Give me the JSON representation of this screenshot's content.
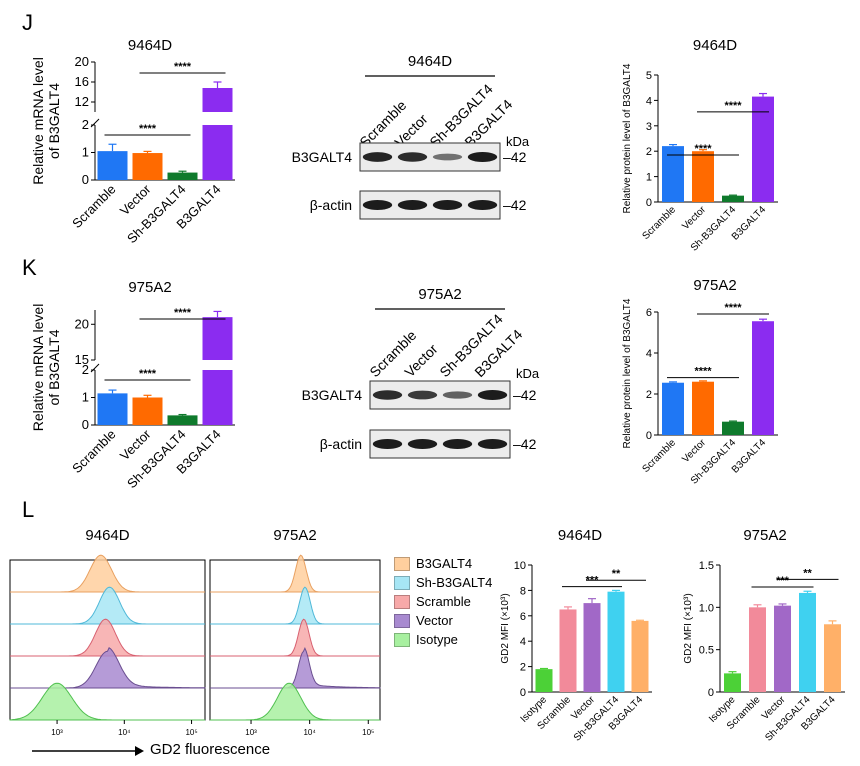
{
  "panels": {
    "J": "J",
    "K": "K",
    "L": "L"
  },
  "colors": {
    "scramble": "#1f77f4",
    "vector": "#ff6a00",
    "sh": "#0f7a2c",
    "b3": "#8b2cf0",
    "l_isotype": "#4cd137",
    "l_scramble": "#f28a9a",
    "l_vector": "#a168c7",
    "l_sh": "#3fd1f0",
    "l_b3": "#ffb068"
  },
  "sig": {
    "four": "****",
    "three": "***",
    "two": "**"
  },
  "chart_data": [
    {
      "id": "J-mrna",
      "type": "bar",
      "title": "9464D",
      "ylabel_line1": "Relative mRNA level",
      "ylabel_line2": "of B3GALT4",
      "categories": [
        "Scramble",
        "Vector",
        "Sh-B3GALT4",
        "B3GALT4"
      ],
      "values": [
        1.05,
        0.98,
        0.27,
        14.8
      ],
      "errors": [
        0.25,
        0.06,
        0.05,
        1.2
      ],
      "broken_axis": true,
      "lower_range": [
        0,
        2
      ],
      "upper_range": [
        10,
        20
      ],
      "yticks_lower": [
        "0",
        "1",
        "2"
      ],
      "yticks_upper": [
        "12",
        "16",
        "20"
      ],
      "comparisons": [
        {
          "from": 0,
          "to": 2,
          "label": "****"
        },
        {
          "from": 1,
          "to": 3,
          "label": "****"
        }
      ]
    },
    {
      "id": "J-wb",
      "type": "western-blot",
      "title": "9464D",
      "lanes": [
        "Scramble",
        "Vector",
        "Sh-B3GALT4",
        "B3GALT4"
      ],
      "unit": "kDa",
      "rows": [
        {
          "label": "B3GALT4",
          "kda": "42"
        },
        {
          "label": "β-actin",
          "kda": "42"
        }
      ],
      "band_intensity": [
        [
          0.95,
          0.9,
          0.45,
          1.0
        ],
        [
          1.0,
          1.0,
          1.0,
          1.0
        ]
      ]
    },
    {
      "id": "J-protein",
      "type": "bar",
      "title": "9464D",
      "ylabel": "Relative protein level of B3GALT4",
      "categories": [
        "Scramble",
        "Vector",
        "Sh-B3GALT4",
        "B3GALT4"
      ],
      "values": [
        2.2,
        2.0,
        0.25,
        4.15
      ],
      "errors": [
        0.06,
        0.06,
        0.02,
        0.12
      ],
      "ylim": [
        0,
        5
      ],
      "yticks": [
        "0",
        "1",
        "2",
        "3",
        "4",
        "5"
      ],
      "comparisons": [
        {
          "from": 0,
          "to": 2,
          "label": "****"
        },
        {
          "from": 1,
          "to": 3,
          "label": "****"
        }
      ]
    },
    {
      "id": "K-mrna",
      "type": "bar",
      "title": "975A2",
      "ylabel_line1": "Relative mRNA level",
      "ylabel_line2": "of B3GALT4",
      "categories": [
        "Scramble",
        "Vector",
        "Sh-B3GALT4",
        "B3GALT4"
      ],
      "values": [
        1.15,
        1.0,
        0.35,
        21.0
      ],
      "errors": [
        0.12,
        0.08,
        0.03,
        0.8
      ],
      "broken_axis": true,
      "lower_range": [
        0,
        2
      ],
      "upper_range": [
        15,
        22
      ],
      "yticks_lower": [
        "0",
        "1",
        "2"
      ],
      "yticks_upper": [
        "15",
        "20"
      ],
      "comparisons": [
        {
          "from": 0,
          "to": 2,
          "label": "****"
        },
        {
          "from": 1,
          "to": 3,
          "label": "****"
        }
      ]
    },
    {
      "id": "K-wb",
      "type": "western-blot",
      "title": "975A2",
      "lanes": [
        "Scramble",
        "Vector",
        "Sh-B3GALT4",
        "B3GALT4"
      ],
      "unit": "kDa",
      "rows": [
        {
          "label": "B3GALT4",
          "kda": "42"
        },
        {
          "label": "β-actin",
          "kda": "42"
        }
      ],
      "band_intensity": [
        [
          0.9,
          0.8,
          0.55,
          1.0
        ],
        [
          1.0,
          1.0,
          1.0,
          1.0
        ]
      ]
    },
    {
      "id": "K-protein",
      "type": "bar",
      "title": "975A2",
      "ylabel": "Relative protein level of B3GALT4",
      "categories": [
        "Scramble",
        "Vector",
        "Sh-B3GALT4",
        "B3GALT4"
      ],
      "values": [
        2.55,
        2.6,
        0.65,
        5.55
      ],
      "errors": [
        0.04,
        0.04,
        0.03,
        0.1
      ],
      "ylim": [
        0,
        6
      ],
      "yticks": [
        "0",
        "2",
        "4",
        "6"
      ],
      "comparisons": [
        {
          "from": 0,
          "to": 2,
          "label": "****"
        },
        {
          "from": 1,
          "to": 3,
          "label": "****"
        }
      ]
    },
    {
      "id": "L-hist-9464D",
      "type": "histogram",
      "title": "9464D",
      "xticks": [
        "10³",
        "10⁴",
        "10⁵"
      ],
      "tracks": [
        {
          "name": "B3GALT4",
          "peak_log": 3.65,
          "width": 0.16
        },
        {
          "name": "Sh-B3GALT4",
          "peak_log": 3.78,
          "width": 0.15
        },
        {
          "name": "Scramble",
          "peak_log": 3.72,
          "width": 0.15
        },
        {
          "name": "Vector",
          "peak_log": 3.75,
          "width": 0.17
        },
        {
          "name": "Isotype",
          "peak_log": 3.0,
          "width": 0.22
        }
      ]
    },
    {
      "id": "L-hist-975A2",
      "type": "histogram",
      "title": "975A2",
      "xticks": [
        "10³",
        "10⁴",
        "10⁵"
      ],
      "tracks": [
        {
          "name": "B3GALT4",
          "peak_log": 3.85,
          "width": 0.09
        },
        {
          "name": "Sh-B3GALT4",
          "peak_log": 3.92,
          "width": 0.09
        },
        {
          "name": "Scramble",
          "peak_log": 3.9,
          "width": 0.09
        },
        {
          "name": "Vector",
          "peak_log": 3.9,
          "width": 0.09
        },
        {
          "name": "Isotype",
          "peak_log": 3.65,
          "width": 0.2
        }
      ]
    },
    {
      "id": "L-mfi-9464D",
      "type": "bar",
      "title": "9464D",
      "ylabel": "GD2 MFI (×10³)",
      "categories": [
        "Isotype",
        "Scramble",
        "Vector",
        "Sh-B3GALT4",
        "B3GALT4"
      ],
      "values": [
        1.8,
        6.5,
        7.0,
        7.9,
        5.6
      ],
      "errors": [
        0.05,
        0.2,
        0.35,
        0.1,
        0.05
      ],
      "ylim": [
        0,
        10
      ],
      "yticks": [
        "0",
        "2",
        "4",
        "6",
        "8",
        "10"
      ],
      "comparisons": [
        {
          "from": 1,
          "to": 3,
          "label": "***"
        },
        {
          "from": 2,
          "to": 4,
          "label": "**"
        }
      ]
    },
    {
      "id": "L-mfi-975A2",
      "type": "bar",
      "title": "975A2",
      "ylabel": "GD2 MFI (×10³)",
      "categories": [
        "Isotype",
        "Scramble",
        "Vector",
        "Sh-B3GALT4",
        "B3GALT4"
      ],
      "values": [
        0.22,
        1.0,
        1.02,
        1.17,
        0.8
      ],
      "errors": [
        0.02,
        0.03,
        0.02,
        0.02,
        0.04
      ],
      "ylim": [
        0,
        1.5
      ],
      "yticks": [
        "0",
        "0.5",
        "1.0",
        "1.5"
      ],
      "comparisons": [
        {
          "from": 1,
          "to": 3,
          "label": "***"
        },
        {
          "from": 2,
          "to": 4,
          "label": "**"
        }
      ]
    }
  ],
  "legend": [
    "B3GALT4",
    "Sh-B3GALT4",
    "Scramble",
    "Vector",
    "Isotype"
  ],
  "xaxis_label": "GD2 fluorescence"
}
